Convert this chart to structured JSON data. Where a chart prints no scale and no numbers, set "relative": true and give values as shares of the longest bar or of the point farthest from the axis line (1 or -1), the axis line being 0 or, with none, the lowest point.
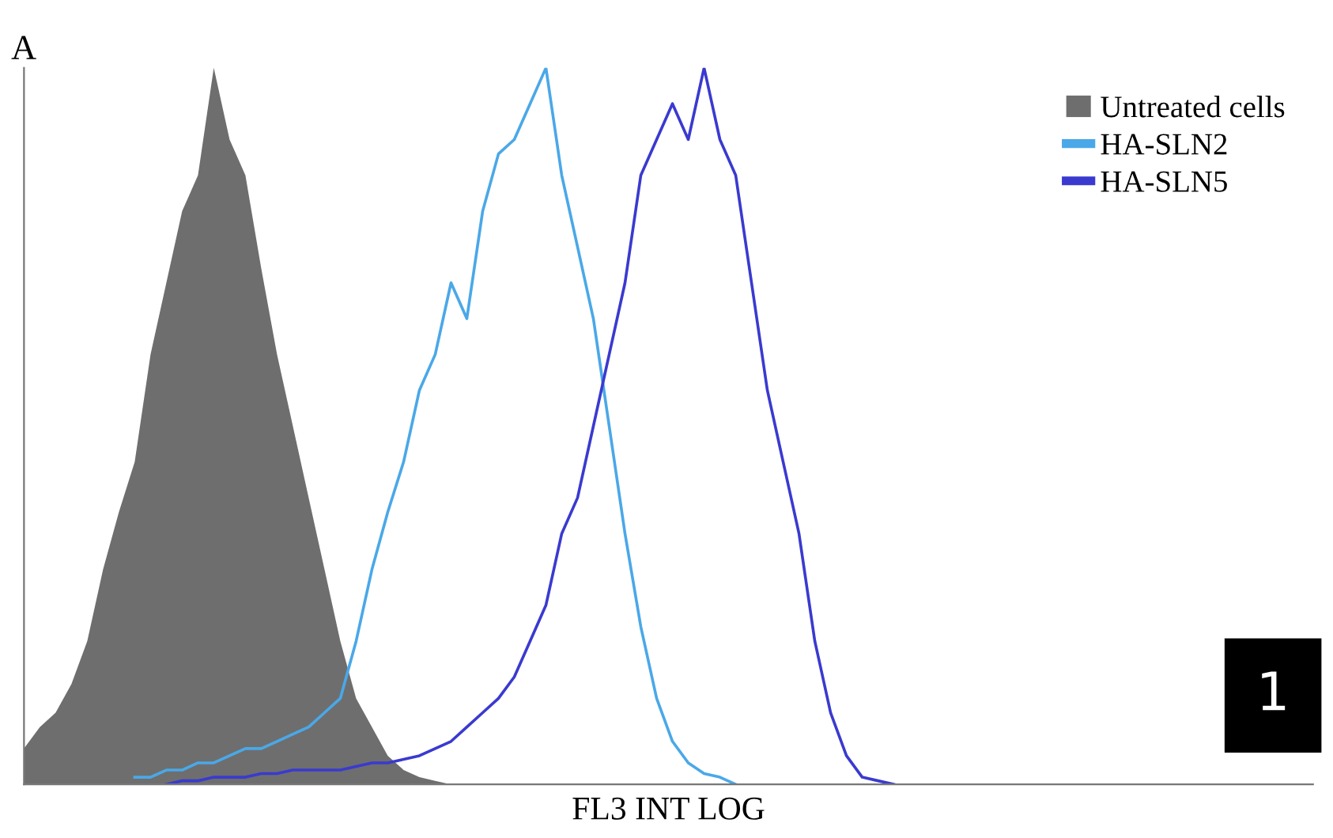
{
  "chart_data": {
    "type": "line",
    "title": "A",
    "xlabel": "FL3 INT LOG",
    "annotations": [
      "1"
    ],
    "relative": true,
    "legend": "top right",
    "grid": false,
    "categories": [
      null,
      null,
      null,
      null,
      null,
      null,
      null,
      null,
      null,
      null,
      null,
      null,
      null,
      null,
      null,
      null,
      null,
      null,
      null,
      null,
      null,
      null,
      null,
      null,
      null,
      null,
      null,
      null,
      null,
      null,
      null,
      null,
      null,
      null,
      null,
      null,
      null,
      null,
      null,
      null,
      null,
      null,
      null,
      null,
      null,
      null,
      null,
      null,
      null,
      null,
      null,
      null,
      null,
      null,
      null,
      null,
      null,
      null,
      null,
      null,
      null,
      null,
      null,
      null,
      null,
      null,
      null,
      null,
      null,
      null,
      null,
      null,
      null,
      null,
      null,
      null,
      null,
      null,
      null,
      null,
      null,
      null
    ],
    "series": [
      {
        "name": "Untreated cells",
        "type": "area",
        "color": "#6e6e6e",
        "values": [
          0.05,
          0.08,
          0.1,
          0.14,
          0.2,
          0.3,
          0.38,
          0.45,
          0.6,
          0.7,
          0.8,
          0.85,
          1.0,
          0.9,
          0.85,
          0.72,
          0.6,
          0.5,
          0.4,
          0.3,
          0.2,
          0.12,
          0.08,
          0.04,
          0.02,
          0.01,
          0.005,
          0,
          null,
          null,
          null,
          null,
          null,
          null,
          null,
          null,
          null,
          null,
          null,
          null,
          null,
          null,
          null,
          null,
          null,
          null,
          null,
          null,
          null,
          null,
          null,
          null,
          null,
          null,
          null,
          null,
          null,
          null,
          null,
          null,
          null,
          null,
          null,
          null,
          null,
          null,
          null,
          null,
          null,
          null,
          null,
          null,
          null,
          null,
          null,
          null,
          null,
          null,
          null,
          null,
          null,
          null
        ]
      },
      {
        "name": "HA-SLN2",
        "color": "#4aa8e8",
        "values": [
          null,
          null,
          null,
          null,
          null,
          null,
          null,
          0.01,
          0.01,
          0.02,
          0.02,
          0.03,
          0.03,
          0.04,
          0.05,
          0.05,
          0.06,
          0.07,
          0.08,
          0.1,
          0.12,
          0.2,
          0.3,
          0.38,
          0.45,
          0.55,
          0.6,
          0.7,
          0.65,
          0.8,
          0.88,
          0.9,
          0.95,
          1.0,
          0.85,
          0.75,
          0.65,
          0.5,
          0.35,
          0.22,
          0.12,
          0.06,
          0.03,
          0.015,
          0.01,
          0,
          null,
          null,
          null,
          null,
          null,
          null,
          null,
          null,
          null,
          null,
          null,
          null,
          null,
          null,
          null,
          null,
          null,
          null,
          null,
          null,
          null,
          null,
          null,
          null,
          null,
          null,
          null,
          null,
          null,
          null,
          null,
          null,
          null,
          null,
          null,
          null
        ]
      },
      {
        "name": "HA-SLN5",
        "color": "#3a3ad0",
        "values": [
          null,
          null,
          null,
          null,
          null,
          null,
          null,
          null,
          null,
          0,
          0.005,
          0.005,
          0.01,
          0.01,
          0.01,
          0.015,
          0.015,
          0.02,
          0.02,
          0.02,
          0.02,
          0.025,
          0.03,
          0.03,
          0.035,
          0.04,
          0.05,
          0.06,
          0.08,
          0.1,
          0.12,
          0.15,
          0.2,
          0.25,
          0.35,
          0.4,
          0.5,
          0.6,
          0.7,
          0.85,
          0.9,
          0.95,
          0.9,
          1.0,
          0.9,
          0.85,
          0.7,
          0.55,
          0.45,
          0.35,
          0.2,
          0.1,
          0.04,
          0.01,
          0.005,
          0,
          null,
          null,
          null,
          null,
          null,
          null,
          null,
          null,
          null,
          null,
          null,
          null,
          null,
          null,
          null,
          null,
          null,
          null,
          null,
          null,
          null,
          null,
          null,
          null,
          null,
          null
        ]
      }
    ]
  }
}
